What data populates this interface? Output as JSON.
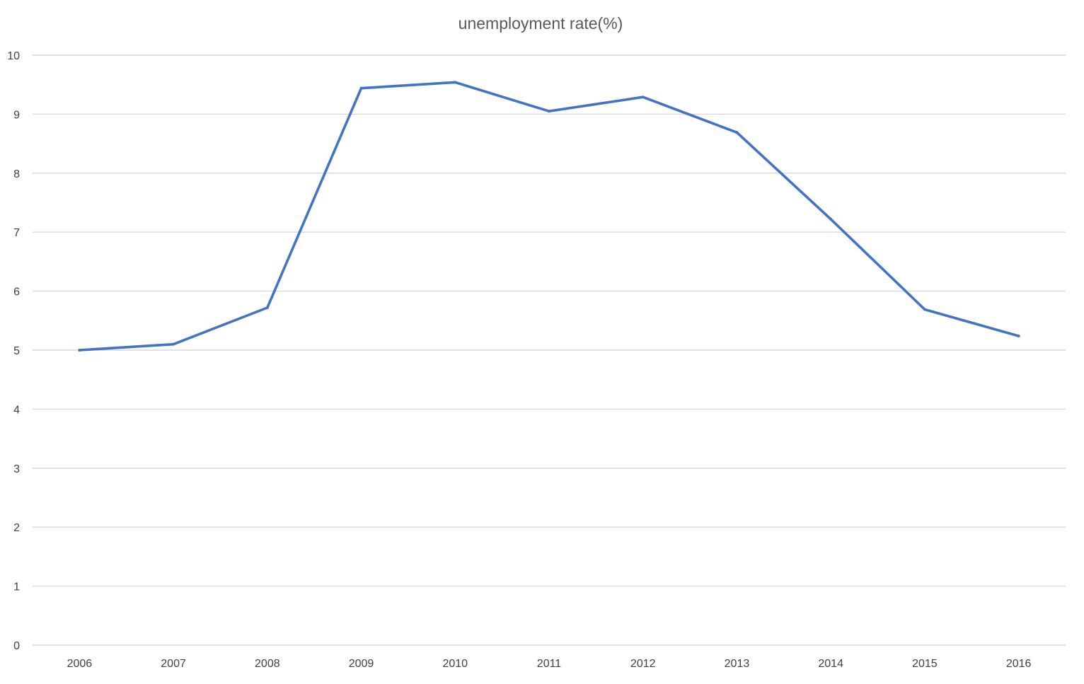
{
  "chart_data": {
    "type": "line",
    "title": "unemployment rate(%)",
    "xlabel": "",
    "ylabel": "",
    "categories": [
      "2006",
      "2007",
      "2008",
      "2009",
      "2010",
      "2011",
      "2012",
      "2013",
      "2014",
      "2015",
      "2016"
    ],
    "series": [
      {
        "values": [
          5.0,
          5.1,
          5.72,
          9.44,
          9.54,
          9.05,
          9.29,
          8.69,
          7.22,
          5.69,
          5.24
        ]
      }
    ],
    "ylim": [
      0,
      10
    ],
    "yticks": [
      "0",
      "1",
      "2",
      "3",
      "4",
      "5",
      "6",
      "7",
      "8",
      "9",
      "10"
    ],
    "grid": true,
    "legend": "none",
    "colors": {
      "series": "#4472c4",
      "grid": "#d9d9d9",
      "text": "#404040",
      "title": "#595959"
    }
  }
}
